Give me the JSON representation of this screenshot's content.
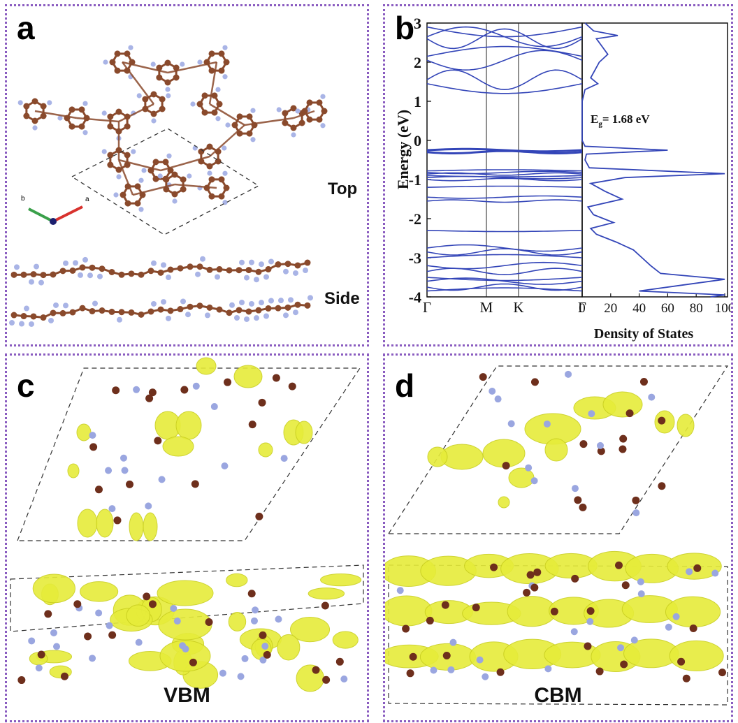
{
  "figure": {
    "panel_a": {
      "label": "a",
      "top_label": "Top",
      "side_label": "Side",
      "axis_a": "a",
      "axis_b": "b"
    },
    "panel_b": {
      "label": "b",
      "gap_text_prefix": "E",
      "gap_text_sub": "g",
      "gap_text_suffix": "= 1.68 eV",
      "k_labels": [
        "Γ",
        "M",
        "K",
        "Γ"
      ],
      "dos_ticks": [
        "0",
        "20",
        "40",
        "60",
        "80",
        "100"
      ],
      "dos_xlabel": "Density of States",
      "ylabel": "Energy (eV)",
      "y_ticks": [
        "3",
        "2",
        "1",
        "0",
        "-1",
        "-2",
        "-3",
        "-4"
      ]
    },
    "panel_c": {
      "label": "c",
      "caption": "VBM"
    },
    "panel_d": {
      "label": "d",
      "caption": "CBM"
    }
  },
  "chart_data": {
    "type": "line",
    "ylabel": "Energy (eV)",
    "ylim": [
      -4,
      3
    ],
    "band_structure": {
      "k_points": [
        "Γ",
        "M",
        "K",
        "Γ"
      ],
      "flat_bands_eV": [
        2.9,
        2.65,
        2.6,
        2.15,
        2.05,
        1.55,
        1.45,
        -0.25,
        -0.3,
        -0.78,
        -0.82,
        -0.86,
        -0.9,
        -0.95,
        -1.0,
        -1.2,
        -1.45,
        -1.55,
        -2.3,
        -2.75,
        -2.85,
        -3.0,
        -3.2,
        -3.35,
        -3.5,
        -3.6,
        -3.75,
        -3.85
      ]
    },
    "dos": {
      "xlabel": "Density of States",
      "xlim": [
        0,
        100
      ],
      "energy": [
        3.0,
        2.8,
        2.68,
        2.6,
        2.4,
        2.2,
        2.0,
        1.8,
        1.6,
        1.45,
        1.3,
        1.0,
        0.5,
        0.0,
        -0.15,
        -0.25,
        -0.35,
        -0.5,
        -0.7,
        -0.85,
        -0.95,
        -1.1,
        -1.3,
        -1.5,
        -1.7,
        -1.9,
        -2.1,
        -2.25,
        -2.4,
        -2.6,
        -2.8,
        -3.0,
        -3.2,
        -3.4,
        -3.55,
        -3.7,
        -3.85,
        -3.95,
        -4.0
      ],
      "density": [
        2,
        8,
        25,
        10,
        14,
        18,
        12,
        9,
        6,
        11,
        2,
        0,
        0,
        0,
        2,
        60,
        3,
        2,
        5,
        100,
        30,
        6,
        16,
        28,
        4,
        8,
        22,
        6,
        10,
        24,
        36,
        42,
        48,
        55,
        100,
        70,
        40,
        100,
        90
      ]
    },
    "series": [
      {
        "name": "",
        "values": []
      }
    ]
  }
}
